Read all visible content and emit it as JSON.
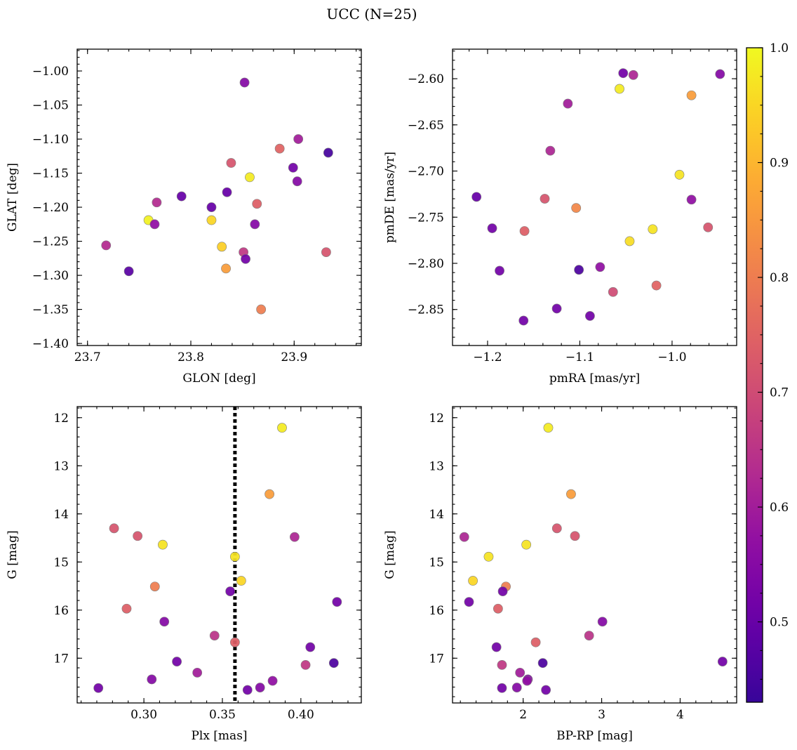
{
  "figure": {
    "title": "UCC (N=25)"
  },
  "colorbar": {
    "colormap": "plasma",
    "vmin": 0.43,
    "vmax": 1.0,
    "ticks": [
      0.5,
      0.6,
      0.7,
      0.8,
      0.9,
      1.0
    ],
    "tick_labels": [
      "0.5",
      "0.6",
      "0.7",
      "0.8",
      "0.9",
      "1.0"
    ]
  },
  "chart_data": [
    {
      "type": "scatter",
      "name": "position",
      "xlabel": "GLON [deg]",
      "ylabel": "GLAT [deg]",
      "xlim": [
        23.69,
        23.965
      ],
      "ylim": [
        -1.403,
        -0.968
      ],
      "xticks": [
        23.7,
        23.8,
        23.9
      ],
      "xtick_labels": [
        "23.7",
        "23.8",
        "23.9"
      ],
      "yticks": [
        -1.4,
        -1.35,
        -1.3,
        -1.25,
        -1.2,
        -1.15,
        -1.1,
        -1.05,
        -1.0
      ],
      "ytick_labels": [
        "−1.40",
        "−1.35",
        "−1.30",
        "−1.25",
        "−1.20",
        "−1.15",
        "−1.10",
        "−1.05",
        "−1.00"
      ],
      "points": [
        {
          "x": 23.852,
          "y": -1.017,
          "c": 0.55
        },
        {
          "x": 23.933,
          "y": -1.12,
          "c": 0.45
        },
        {
          "x": 23.904,
          "y": -1.1,
          "c": 0.6
        },
        {
          "x": 23.886,
          "y": -1.114,
          "c": 0.75
        },
        {
          "x": 23.899,
          "y": -1.142,
          "c": 0.52
        },
        {
          "x": 23.903,
          "y": -1.162,
          "c": 0.55
        },
        {
          "x": 23.839,
          "y": -1.135,
          "c": 0.72
        },
        {
          "x": 23.857,
          "y": -1.156,
          "c": 0.98
        },
        {
          "x": 23.835,
          "y": -1.178,
          "c": 0.5
        },
        {
          "x": 23.791,
          "y": -1.184,
          "c": 0.5
        },
        {
          "x": 23.864,
          "y": -1.195,
          "c": 0.74
        },
        {
          "x": 23.767,
          "y": -1.193,
          "c": 0.63
        },
        {
          "x": 23.82,
          "y": -1.2,
          "c": 0.5
        },
        {
          "x": 23.759,
          "y": -1.219,
          "c": 0.99
        },
        {
          "x": 23.82,
          "y": -1.219,
          "c": 0.95
        },
        {
          "x": 23.765,
          "y": -1.225,
          "c": 0.57
        },
        {
          "x": 23.862,
          "y": -1.225,
          "c": 0.55
        },
        {
          "x": 23.718,
          "y": -1.256,
          "c": 0.63
        },
        {
          "x": 23.83,
          "y": -1.258,
          "c": 0.94
        },
        {
          "x": 23.851,
          "y": -1.266,
          "c": 0.66
        },
        {
          "x": 23.931,
          "y": -1.266,
          "c": 0.72
        },
        {
          "x": 23.853,
          "y": -1.276,
          "c": 0.52
        },
        {
          "x": 23.834,
          "y": -1.29,
          "c": 0.86
        },
        {
          "x": 23.74,
          "y": -1.294,
          "c": 0.48
        },
        {
          "x": 23.868,
          "y": -1.35,
          "c": 0.8
        }
      ]
    },
    {
      "type": "scatter",
      "name": "proper-motion",
      "xlabel": "pmRA [mas/yr]",
      "ylabel": "pmDE [mas/yr]",
      "xlim": [
        -1.238,
        -0.93
      ],
      "ylim": [
        -2.889,
        -2.568
      ],
      "xticks": [
        -1.2,
        -1.1,
        -1.0
      ],
      "xtick_labels": [
        "−1.2",
        "−1.1",
        "−1.0"
      ],
      "yticks": [
        -2.85,
        -2.8,
        -2.75,
        -2.7,
        -2.65,
        -2.6
      ],
      "ytick_labels": [
        "−2.85",
        "−2.80",
        "−2.75",
        "−2.70",
        "−2.65",
        "−2.60"
      ],
      "points": [
        {
          "x": -1.053,
          "y": -2.594,
          "c": 0.52
        },
        {
          "x": -1.042,
          "y": -2.596,
          "c": 0.62
        },
        {
          "x": -0.948,
          "y": -2.595,
          "c": 0.55
        },
        {
          "x": -1.057,
          "y": -2.611,
          "c": 0.98
        },
        {
          "x": -0.979,
          "y": -2.618,
          "c": 0.86
        },
        {
          "x": -1.113,
          "y": -2.627,
          "c": 0.6
        },
        {
          "x": -1.132,
          "y": -2.678,
          "c": 0.62
        },
        {
          "x": -0.992,
          "y": -2.704,
          "c": 0.97
        },
        {
          "x": -1.212,
          "y": -2.728,
          "c": 0.5
        },
        {
          "x": -1.138,
          "y": -2.73,
          "c": 0.72
        },
        {
          "x": -0.979,
          "y": -2.731,
          "c": 0.57
        },
        {
          "x": -1.104,
          "y": -2.74,
          "c": 0.82
        },
        {
          "x": -1.195,
          "y": -2.762,
          "c": 0.52
        },
        {
          "x": -1.021,
          "y": -2.763,
          "c": 0.97
        },
        {
          "x": -0.961,
          "y": -2.761,
          "c": 0.72
        },
        {
          "x": -1.16,
          "y": -2.765,
          "c": 0.74
        },
        {
          "x": -1.046,
          "y": -2.776,
          "c": 0.96
        },
        {
          "x": -1.078,
          "y": -2.804,
          "c": 0.57
        },
        {
          "x": -1.187,
          "y": -2.808,
          "c": 0.52
        },
        {
          "x": -1.101,
          "y": -2.807,
          "c": 0.46
        },
        {
          "x": -1.017,
          "y": -2.824,
          "c": 0.75
        },
        {
          "x": -1.064,
          "y": -2.831,
          "c": 0.7
        },
        {
          "x": -1.125,
          "y": -2.849,
          "c": 0.52
        },
        {
          "x": -1.089,
          "y": -2.857,
          "c": 0.52
        },
        {
          "x": -1.161,
          "y": -2.862,
          "c": 0.52
        }
      ]
    },
    {
      "type": "scatter",
      "name": "cmd-parallax",
      "xlabel": "Plx [mas]",
      "ylabel": "G [mag]",
      "xlim": [
        0.2575,
        0.4385
      ],
      "ylim": [
        17.93,
        11.77
      ],
      "y_inverted": true,
      "xticks": [
        0.3,
        0.35,
        0.4
      ],
      "xtick_labels": [
        "0.30",
        "0.35",
        "0.40"
      ],
      "yticks": [
        12,
        13,
        14,
        15,
        16,
        17
      ],
      "ytick_labels": [
        "12",
        "13",
        "14",
        "15",
        "16",
        "17"
      ],
      "vline": {
        "x": 0.358,
        "style": "dotted"
      },
      "points": [
        {
          "x": 0.388,
          "y": 12.21,
          "c": 0.98
        },
        {
          "x": 0.38,
          "y": 13.59,
          "c": 0.86
        },
        {
          "x": 0.281,
          "y": 14.3,
          "c": 0.72
        },
        {
          "x": 0.296,
          "y": 14.46,
          "c": 0.72
        },
        {
          "x": 0.396,
          "y": 14.48,
          "c": 0.62
        },
        {
          "x": 0.312,
          "y": 14.64,
          "c": 0.97
        },
        {
          "x": 0.358,
          "y": 14.89,
          "c": 0.97
        },
        {
          "x": 0.362,
          "y": 15.39,
          "c": 0.95
        },
        {
          "x": 0.307,
          "y": 15.51,
          "c": 0.8
        },
        {
          "x": 0.355,
          "y": 15.61,
          "c": 0.52
        },
        {
          "x": 0.423,
          "y": 15.83,
          "c": 0.52
        },
        {
          "x": 0.289,
          "y": 15.97,
          "c": 0.74
        },
        {
          "x": 0.313,
          "y": 16.24,
          "c": 0.55
        },
        {
          "x": 0.345,
          "y": 16.53,
          "c": 0.65
        },
        {
          "x": 0.358,
          "y": 16.67,
          "c": 0.74
        },
        {
          "x": 0.406,
          "y": 16.77,
          "c": 0.52
        },
        {
          "x": 0.321,
          "y": 17.07,
          "c": 0.52
        },
        {
          "x": 0.421,
          "y": 17.1,
          "c": 0.46
        },
        {
          "x": 0.403,
          "y": 17.14,
          "c": 0.66
        },
        {
          "x": 0.334,
          "y": 17.3,
          "c": 0.6
        },
        {
          "x": 0.305,
          "y": 17.44,
          "c": 0.55
        },
        {
          "x": 0.382,
          "y": 17.47,
          "c": 0.57
        },
        {
          "x": 0.374,
          "y": 17.61,
          "c": 0.55
        },
        {
          "x": 0.271,
          "y": 17.62,
          "c": 0.52
        },
        {
          "x": 0.366,
          "y": 17.66,
          "c": 0.52
        }
      ]
    },
    {
      "type": "scatter",
      "name": "cmd-color",
      "xlabel": "BP-RP [mag]",
      "ylabel": "G [mag]",
      "xlim": [
        1.1,
        4.72
      ],
      "ylim": [
        17.93,
        11.77
      ],
      "y_inverted": true,
      "xticks": [
        2,
        3,
        4
      ],
      "xtick_labels": [
        "2",
        "3",
        "4"
      ],
      "yticks": [
        12,
        13,
        14,
        15,
        16,
        17
      ],
      "ytick_labels": [
        "12",
        "13",
        "14",
        "15",
        "16",
        "17"
      ],
      "points": [
        {
          "x": 2.32,
          "y": 12.21,
          "c": 0.98
        },
        {
          "x": 2.61,
          "y": 13.59,
          "c": 0.86
        },
        {
          "x": 2.43,
          "y": 14.3,
          "c": 0.72
        },
        {
          "x": 2.66,
          "y": 14.46,
          "c": 0.72
        },
        {
          "x": 1.25,
          "y": 14.48,
          "c": 0.62
        },
        {
          "x": 2.04,
          "y": 14.64,
          "c": 0.97
        },
        {
          "x": 1.56,
          "y": 14.89,
          "c": 0.97
        },
        {
          "x": 1.36,
          "y": 15.39,
          "c": 0.95
        },
        {
          "x": 1.78,
          "y": 15.51,
          "c": 0.8
        },
        {
          "x": 1.74,
          "y": 15.61,
          "c": 0.52
        },
        {
          "x": 1.31,
          "y": 15.83,
          "c": 0.52
        },
        {
          "x": 1.68,
          "y": 15.97,
          "c": 0.74
        },
        {
          "x": 3.01,
          "y": 16.24,
          "c": 0.55
        },
        {
          "x": 2.84,
          "y": 16.53,
          "c": 0.65
        },
        {
          "x": 2.16,
          "y": 16.67,
          "c": 0.74
        },
        {
          "x": 1.66,
          "y": 16.77,
          "c": 0.52
        },
        {
          "x": 4.54,
          "y": 17.07,
          "c": 0.52
        },
        {
          "x": 2.25,
          "y": 17.1,
          "c": 0.46
        },
        {
          "x": 1.73,
          "y": 17.14,
          "c": 0.66
        },
        {
          "x": 1.96,
          "y": 17.3,
          "c": 0.6
        },
        {
          "x": 2.06,
          "y": 17.44,
          "c": 0.55
        },
        {
          "x": 2.05,
          "y": 17.47,
          "c": 0.57
        },
        {
          "x": 1.92,
          "y": 17.61,
          "c": 0.55
        },
        {
          "x": 1.73,
          "y": 17.62,
          "c": 0.52
        },
        {
          "x": 2.29,
          "y": 17.66,
          "c": 0.52
        }
      ]
    }
  ]
}
